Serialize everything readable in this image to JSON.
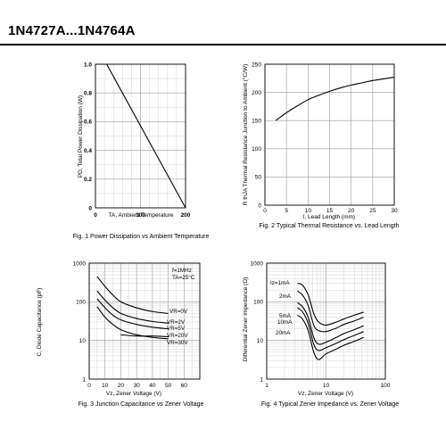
{
  "page": {
    "title": "1N4727A...1N4764A"
  },
  "chart_data": [
    {
      "type": "line",
      "caption": "Fig. 1 Power Dissipation vs Ambient Temperature",
      "xlabel": "TA, Ambient Temperature",
      "ylabel": "PD, Total Power Dissipation (W)",
      "xlim": [
        0,
        200
      ],
      "ylim": [
        0,
        1.0
      ],
      "xticks": [
        "0",
        "100",
        "200"
      ],
      "yticks": [
        "0",
        "0.2",
        "0.4",
        "0.6",
        "0.8",
        "1.0"
      ],
      "grid": true,
      "series": [
        {
          "x": [
            0,
            25,
            200
          ],
          "y": [
            1.0,
            1.0,
            0.0
          ]
        }
      ]
    },
    {
      "type": "line",
      "caption": "Fig. 2 Typical Thermal Resistance vs. Lead Length",
      "xlabel": "l, Lead Length (mm)",
      "ylabel": "R thJA Thermal Resistance Junction to Ambient (°C/W)",
      "xlim": [
        0,
        30
      ],
      "ylim": [
        0,
        250
      ],
      "xticks": [
        "0",
        "5",
        "10",
        "15",
        "20",
        "25",
        "30"
      ],
      "yticks": [
        "0",
        "50",
        "100",
        "150",
        "200",
        "250"
      ],
      "grid": true,
      "series": [
        {
          "x": [
            2.5,
            5,
            7.5,
            10,
            12.5,
            15,
            17.5,
            20,
            22.5,
            25,
            27.5,
            30
          ],
          "y": [
            150,
            164,
            176,
            187,
            195,
            202,
            208,
            213,
            217,
            221,
            224,
            227
          ]
        }
      ]
    },
    {
      "type": "line",
      "caption": "Fig. 3 Junction Capacitance vs Zener Voltage",
      "xlabel": "Vz, Zener Voltage (V)",
      "ylabel": "C, Diode Capacitance (pF)",
      "xlim": [
        0,
        70
      ],
      "ylim": [
        1,
        1000
      ],
      "yscale": "log",
      "xticks": [
        "0",
        "10",
        "20",
        "30",
        "40",
        "50",
        "60"
      ],
      "yticks": [
        "1",
        "10",
        "100",
        "1000"
      ],
      "grid": true,
      "annotations": [
        "f=1MHz",
        "TA=25°C"
      ],
      "series": [
        {
          "name": "VR=0V",
          "x": [
            5,
            10,
            15,
            20,
            30,
            40,
            50
          ],
          "y": [
            450,
            250,
            150,
            100,
            70,
            56,
            50
          ]
        },
        {
          "name": "VR=2V",
          "x": [
            5,
            10,
            15,
            20,
            30,
            40,
            50
          ],
          "y": [
            190,
            110,
            70,
            50,
            37,
            31,
            28
          ]
        },
        {
          "name": "VR=5V",
          "x": [
            5,
            10,
            15,
            20,
            30,
            40,
            50
          ],
          "y": [
            120,
            70,
            45,
            34,
            26,
            22,
            20
          ]
        },
        {
          "name": "VR=20V",
          "x": [
            20,
            30,
            40,
            50
          ],
          "y": [
            14,
            13,
            13,
            12.5
          ]
        },
        {
          "name": "VR=30V",
          "x": [
            5,
            10,
            15,
            20,
            30,
            40,
            50
          ],
          "y": [
            75,
            40,
            26,
            19,
            14,
            12,
            11
          ]
        }
      ]
    },
    {
      "type": "line",
      "caption": "Fig. 4 Typical Zener Impedance vs. Zener Voltage",
      "xlabel": "Vz, Zener Voltage (V)",
      "ylabel": "Differential Zener Impedance (Ω)",
      "xlim": [
        1,
        100
      ],
      "ylim": [
        1,
        1000
      ],
      "xscale": "log",
      "yscale": "log",
      "xticks": [
        "1",
        "10",
        "100"
      ],
      "yticks": [
        "1",
        "10",
        "100",
        "1000"
      ],
      "grid": true,
      "series": [
        {
          "name": "Iz=1mA",
          "x": [
            3.3,
            4,
            5,
            6.2,
            7.5,
            10,
            15,
            20,
            30,
            43
          ],
          "y": [
            300,
            270,
            150,
            50,
            30,
            25,
            30,
            36,
            45,
            54
          ]
        },
        {
          "name": "2mA",
          "x": [
            3.3,
            4,
            5,
            6.2,
            7.5,
            10,
            15,
            20,
            30,
            43
          ],
          "y": [
            190,
            150,
            80,
            25,
            18,
            17,
            21,
            26,
            32,
            40
          ]
        },
        {
          "name": "5mA",
          "x": [
            3.3,
            4,
            5,
            6.2,
            7.5,
            10,
            15,
            20,
            30,
            43
          ],
          "y": [
            95,
            75,
            40,
            12,
            8,
            9,
            12,
            15,
            19,
            24
          ]
        },
        {
          "name": "10mA",
          "x": [
            3.3,
            4,
            5,
            6.2,
            7.5,
            10,
            15,
            20,
            30,
            43
          ],
          "y": [
            70,
            55,
            28,
            8,
            5.5,
            6.5,
            8.5,
            10.5,
            13.5,
            17
          ]
        },
        {
          "name": "20mA",
          "x": [
            3.3,
            4,
            5,
            6.2,
            7.5,
            10,
            15,
            20,
            30,
            43
          ],
          "y": [
            45,
            36,
            18,
            5,
            3.2,
            4.5,
            6,
            7.5,
            9.5,
            12
          ]
        }
      ]
    }
  ]
}
